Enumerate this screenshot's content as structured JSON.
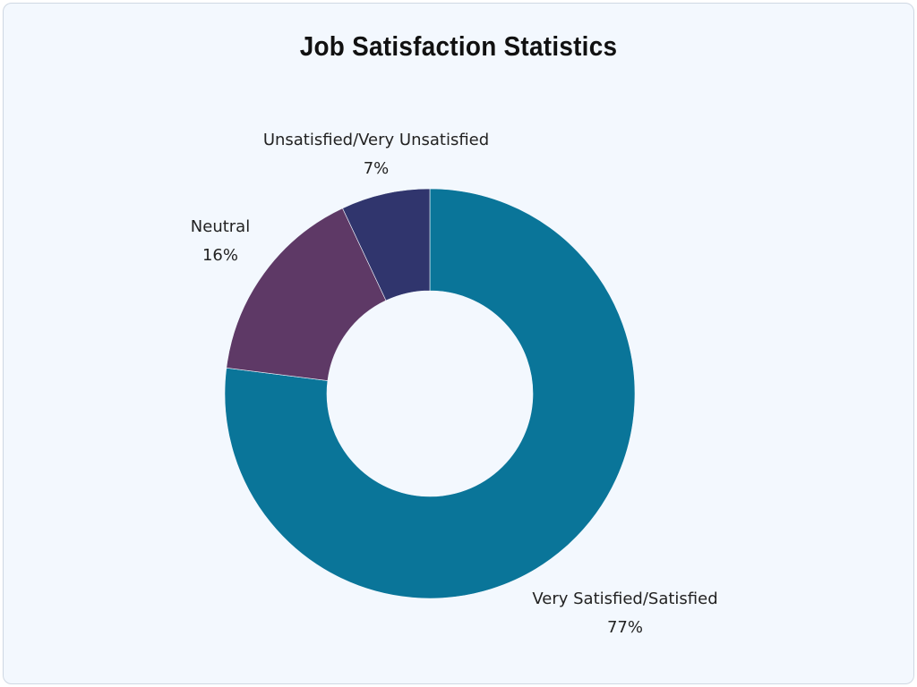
{
  "chart_data": {
    "type": "pie",
    "donut": true,
    "title": "Job Satisfaction Statistics",
    "slices": [
      {
        "label": "Very Satisfied/Satisfied",
        "value": 77,
        "display": "77%",
        "color": "#0a7599"
      },
      {
        "label": "Neutral",
        "value": 16,
        "display": "16%",
        "color": "#5e3966"
      },
      {
        "label": "Unsatisfied/Very Unsatisfied",
        "value": 7,
        "display": "7%",
        "color": "#30356d"
      }
    ],
    "legend": "none"
  }
}
